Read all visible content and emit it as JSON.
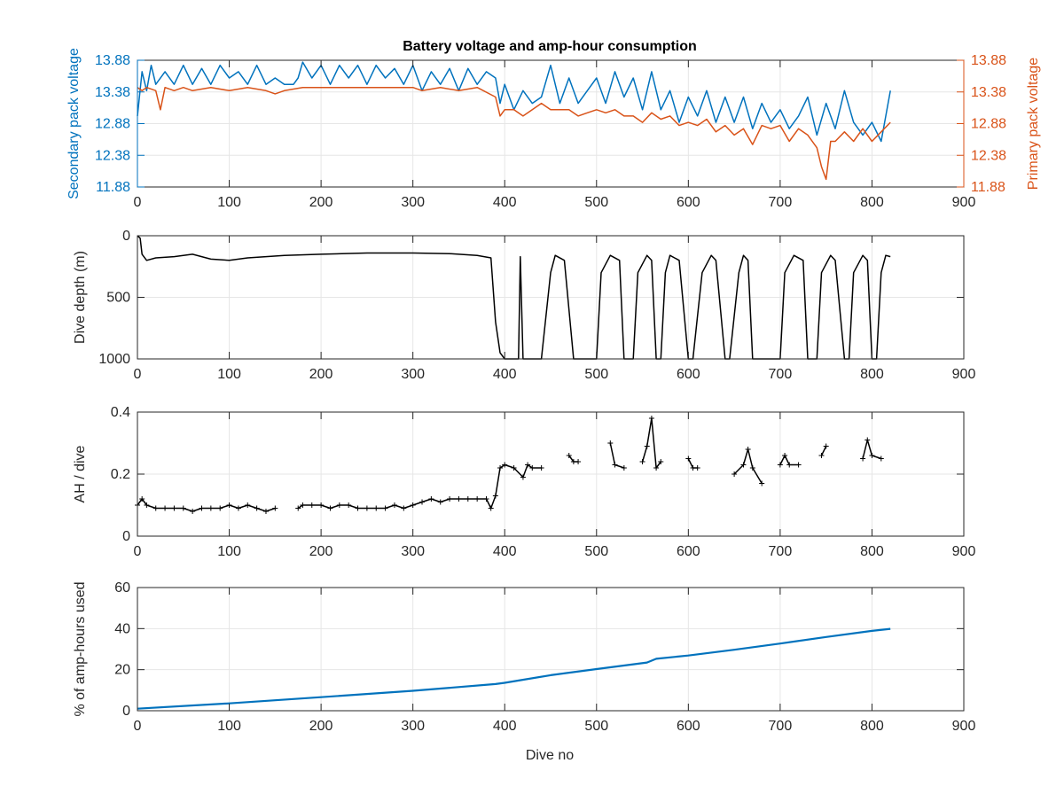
{
  "figure": {
    "title": "Battery voltage and amp-hour consumption",
    "xlabel": "Dive no"
  },
  "colors": {
    "secondary": "#0072BD",
    "primary": "#D95319",
    "black": "#000000",
    "grid": "#e6e6e6",
    "axis": "#262626"
  },
  "chart_data": [
    {
      "type": "line",
      "ylabel": "Secondary pack voltage",
      "ylabel_right": "Primary pack voltage",
      "xlim": [
        0,
        900
      ],
      "xticks": [
        0,
        100,
        200,
        300,
        400,
        500,
        600,
        700,
        800,
        900
      ],
      "ylim": [
        11.88,
        13.88
      ],
      "yticks": [
        11.88,
        12.38,
        12.88,
        13.38,
        13.88
      ],
      "ylim_right": [
        11.88,
        13.88
      ],
      "yticks_right": [
        11.88,
        12.38,
        12.88,
        13.38,
        13.88
      ],
      "grid": true,
      "series": [
        {
          "axis": "left",
          "color": "#0072BD",
          "x": [
            0,
            5,
            10,
            15,
            20,
            30,
            40,
            50,
            60,
            70,
            80,
            90,
            100,
            110,
            120,
            130,
            140,
            150,
            160,
            170,
            175,
            180,
            190,
            200,
            210,
            220,
            230,
            240,
            250,
            260,
            270,
            280,
            290,
            300,
            310,
            320,
            330,
            340,
            350,
            360,
            370,
            380,
            390,
            395,
            400,
            410,
            420,
            430,
            440,
            450,
            460,
            470,
            480,
            490,
            500,
            510,
            520,
            530,
            540,
            550,
            560,
            570,
            580,
            590,
            600,
            610,
            620,
            630,
            640,
            650,
            660,
            670,
            680,
            690,
            700,
            710,
            720,
            730,
            740,
            750,
            760,
            770,
            780,
            790,
            800,
            810,
            815,
            820
          ],
          "y": [
            13.0,
            13.7,
            13.4,
            13.8,
            13.5,
            13.7,
            13.5,
            13.8,
            13.5,
            13.75,
            13.5,
            13.8,
            13.6,
            13.7,
            13.5,
            13.8,
            13.5,
            13.6,
            13.5,
            13.5,
            13.6,
            13.85,
            13.6,
            13.8,
            13.5,
            13.8,
            13.6,
            13.8,
            13.5,
            13.8,
            13.6,
            13.75,
            13.5,
            13.8,
            13.4,
            13.7,
            13.5,
            13.75,
            13.4,
            13.75,
            13.5,
            13.7,
            13.6,
            13.2,
            13.5,
            13.1,
            13.4,
            13.2,
            13.3,
            13.8,
            13.2,
            13.6,
            13.2,
            13.4,
            13.6,
            13.2,
            13.7,
            13.3,
            13.6,
            13.1,
            13.7,
            13.1,
            13.4,
            12.9,
            13.3,
            13.0,
            13.4,
            12.9,
            13.3,
            12.9,
            13.3,
            12.8,
            13.2,
            12.9,
            13.1,
            12.8,
            13.0,
            13.3,
            12.7,
            13.2,
            12.8,
            13.4,
            12.9,
            12.7,
            12.9,
            12.6,
            13.0,
            13.4
          ]
        },
        {
          "axis": "right",
          "color": "#D95319",
          "x": [
            0,
            5,
            10,
            20,
            25,
            30,
            40,
            50,
            60,
            80,
            100,
            120,
            140,
            150,
            160,
            180,
            200,
            220,
            240,
            260,
            280,
            300,
            310,
            330,
            350,
            370,
            390,
            395,
            400,
            410,
            420,
            430,
            440,
            450,
            460,
            470,
            480,
            490,
            500,
            510,
            520,
            530,
            540,
            550,
            560,
            570,
            580,
            590,
            600,
            610,
            620,
            630,
            640,
            650,
            660,
            670,
            680,
            690,
            700,
            710,
            720,
            730,
            740,
            745,
            750,
            755,
            760,
            770,
            780,
            790,
            800,
            810,
            820
          ],
          "y": [
            13.45,
            13.4,
            13.45,
            13.4,
            13.1,
            13.45,
            13.4,
            13.45,
            13.4,
            13.45,
            13.4,
            13.45,
            13.4,
            13.35,
            13.4,
            13.45,
            13.45,
            13.45,
            13.45,
            13.45,
            13.45,
            13.45,
            13.4,
            13.45,
            13.4,
            13.45,
            13.3,
            13.0,
            13.1,
            13.1,
            13.0,
            13.1,
            13.2,
            13.1,
            13.1,
            13.1,
            13.0,
            13.05,
            13.1,
            13.05,
            13.1,
            13.0,
            13.0,
            12.9,
            13.05,
            12.95,
            13.0,
            12.85,
            12.9,
            12.85,
            12.95,
            12.75,
            12.85,
            12.7,
            12.8,
            12.55,
            12.85,
            12.8,
            12.85,
            12.6,
            12.8,
            12.7,
            12.5,
            12.2,
            12.0,
            12.6,
            12.6,
            12.75,
            12.6,
            12.8,
            12.6,
            12.75,
            12.9
          ]
        }
      ]
    },
    {
      "type": "line",
      "ylabel": "Dive depth (m)",
      "xlim": [
        0,
        900
      ],
      "xticks": [
        0,
        100,
        200,
        300,
        400,
        500,
        600,
        700,
        800,
        900
      ],
      "ylim": [
        0,
        1000
      ],
      "yticks": [
        0,
        500,
        1000
      ],
      "y_reversed": true,
      "grid": true,
      "series": [
        {
          "color": "#000000",
          "x": [
            0,
            3,
            5,
            10,
            20,
            40,
            60,
            80,
            100,
            120,
            140,
            160,
            200,
            250,
            300,
            340,
            370,
            385,
            390,
            395,
            400,
            405,
            410,
            415,
            417,
            420,
            425,
            440,
            450,
            455,
            465,
            475,
            480,
            490,
            500,
            505,
            515,
            525,
            530,
            540,
            545,
            555,
            560,
            565,
            570,
            575,
            580,
            590,
            600,
            605,
            615,
            625,
            630,
            640,
            645,
            655,
            660,
            665,
            670,
            680,
            690,
            700,
            705,
            715,
            725,
            730,
            740,
            745,
            755,
            760,
            770,
            775,
            780,
            790,
            795,
            800,
            805,
            810,
            815,
            820
          ],
          "y": [
            0,
            20,
            150,
            200,
            180,
            170,
            150,
            190,
            200,
            180,
            170,
            160,
            150,
            140,
            140,
            145,
            160,
            180,
            700,
            950,
            1000,
            1000,
            1000,
            1000,
            170,
            1000,
            1000,
            1000,
            300,
            160,
            200,
            1000,
            1000,
            1000,
            1000,
            300,
            160,
            200,
            1000,
            1000,
            300,
            160,
            200,
            1000,
            1000,
            300,
            160,
            200,
            1000,
            1000,
            300,
            160,
            200,
            1000,
            1000,
            300,
            160,
            200,
            1000,
            1000,
            1000,
            1000,
            300,
            160,
            200,
            1000,
            1000,
            300,
            160,
            200,
            1000,
            1000,
            300,
            160,
            200,
            1000,
            1000,
            300,
            160,
            170
          ]
        }
      ]
    },
    {
      "type": "line",
      "ylabel": "AH / dive",
      "xlim": [
        0,
        900
      ],
      "xticks": [
        0,
        100,
        200,
        300,
        400,
        500,
        600,
        700,
        800,
        900
      ],
      "ylim": [
        0,
        0.4
      ],
      "yticks": [
        0,
        0.2,
        0.4
      ],
      "grid": true,
      "series": [
        {
          "color": "#000000",
          "x": [
            0,
            5,
            10,
            20,
            30,
            40,
            50,
            60,
            70,
            80,
            90,
            100,
            110,
            120,
            130,
            140,
            150,
            160,
            170,
            175,
            180,
            190,
            200,
            210,
            220,
            230,
            240,
            250,
            260,
            270,
            280,
            290,
            300,
            310,
            320,
            330,
            340,
            350,
            360,
            370,
            380,
            385,
            390,
            395,
            400,
            410,
            420,
            425,
            430,
            440,
            445,
            450,
            460,
            470,
            475,
            480,
            490,
            500,
            510,
            515,
            520,
            530,
            540,
            550,
            555,
            560,
            565,
            570,
            580,
            590,
            600,
            605,
            610,
            620,
            630,
            640,
            645,
            650,
            660,
            665,
            670,
            680,
            690,
            700,
            705,
            710,
            720,
            730,
            740,
            745,
            750,
            760,
            770,
            780,
            790,
            795,
            800,
            810,
            820
          ],
          "y": [
            0.1,
            0.12,
            0.1,
            0.09,
            0.09,
            0.09,
            0.09,
            0.08,
            0.09,
            0.09,
            0.09,
            0.1,
            0.09,
            0.1,
            0.09,
            0.08,
            0.09,
            null,
            null,
            0.09,
            0.1,
            0.1,
            0.1,
            0.09,
            0.1,
            0.1,
            0.09,
            0.09,
            0.09,
            0.09,
            0.1,
            0.09,
            0.1,
            0.11,
            0.12,
            0.11,
            0.12,
            0.12,
            0.12,
            0.12,
            0.12,
            0.09,
            0.13,
            0.22,
            0.23,
            0.22,
            0.19,
            0.23,
            0.22,
            0.22,
            null,
            null,
            null,
            0.26,
            0.24,
            0.24,
            null,
            null,
            null,
            0.3,
            0.23,
            0.22,
            null,
            0.24,
            0.29,
            0.38,
            0.22,
            0.24,
            null,
            null,
            0.25,
            0.22,
            0.22,
            null,
            null,
            null,
            null,
            0.2,
            0.23,
            0.28,
            0.22,
            0.17,
            null,
            0.23,
            0.26,
            0.23,
            0.23,
            null,
            null,
            0.26,
            0.29,
            null,
            null,
            null,
            0.25,
            0.31,
            0.26,
            0.25,
            null
          ]
        }
      ]
    },
    {
      "type": "line",
      "ylabel": "% of amp-hours used",
      "xlim": [
        0,
        900
      ],
      "xticks": [
        0,
        100,
        200,
        300,
        400,
        500,
        600,
        700,
        800,
        900
      ],
      "ylim": [
        0,
        60
      ],
      "yticks": [
        0,
        20,
        40,
        60
      ],
      "grid": true,
      "series": [
        {
          "color": "#0072BD",
          "x": [
            0,
            100,
            200,
            300,
            390,
            400,
            450,
            500,
            555,
            565,
            600,
            650,
            700,
            750,
            800,
            820
          ],
          "y": [
            1,
            3.6,
            6.6,
            9.7,
            13.0,
            13.6,
            17.3,
            20.3,
            23.5,
            25.3,
            26.9,
            29.7,
            32.7,
            35.9,
            38.9,
            39.9
          ]
        }
      ]
    }
  ]
}
